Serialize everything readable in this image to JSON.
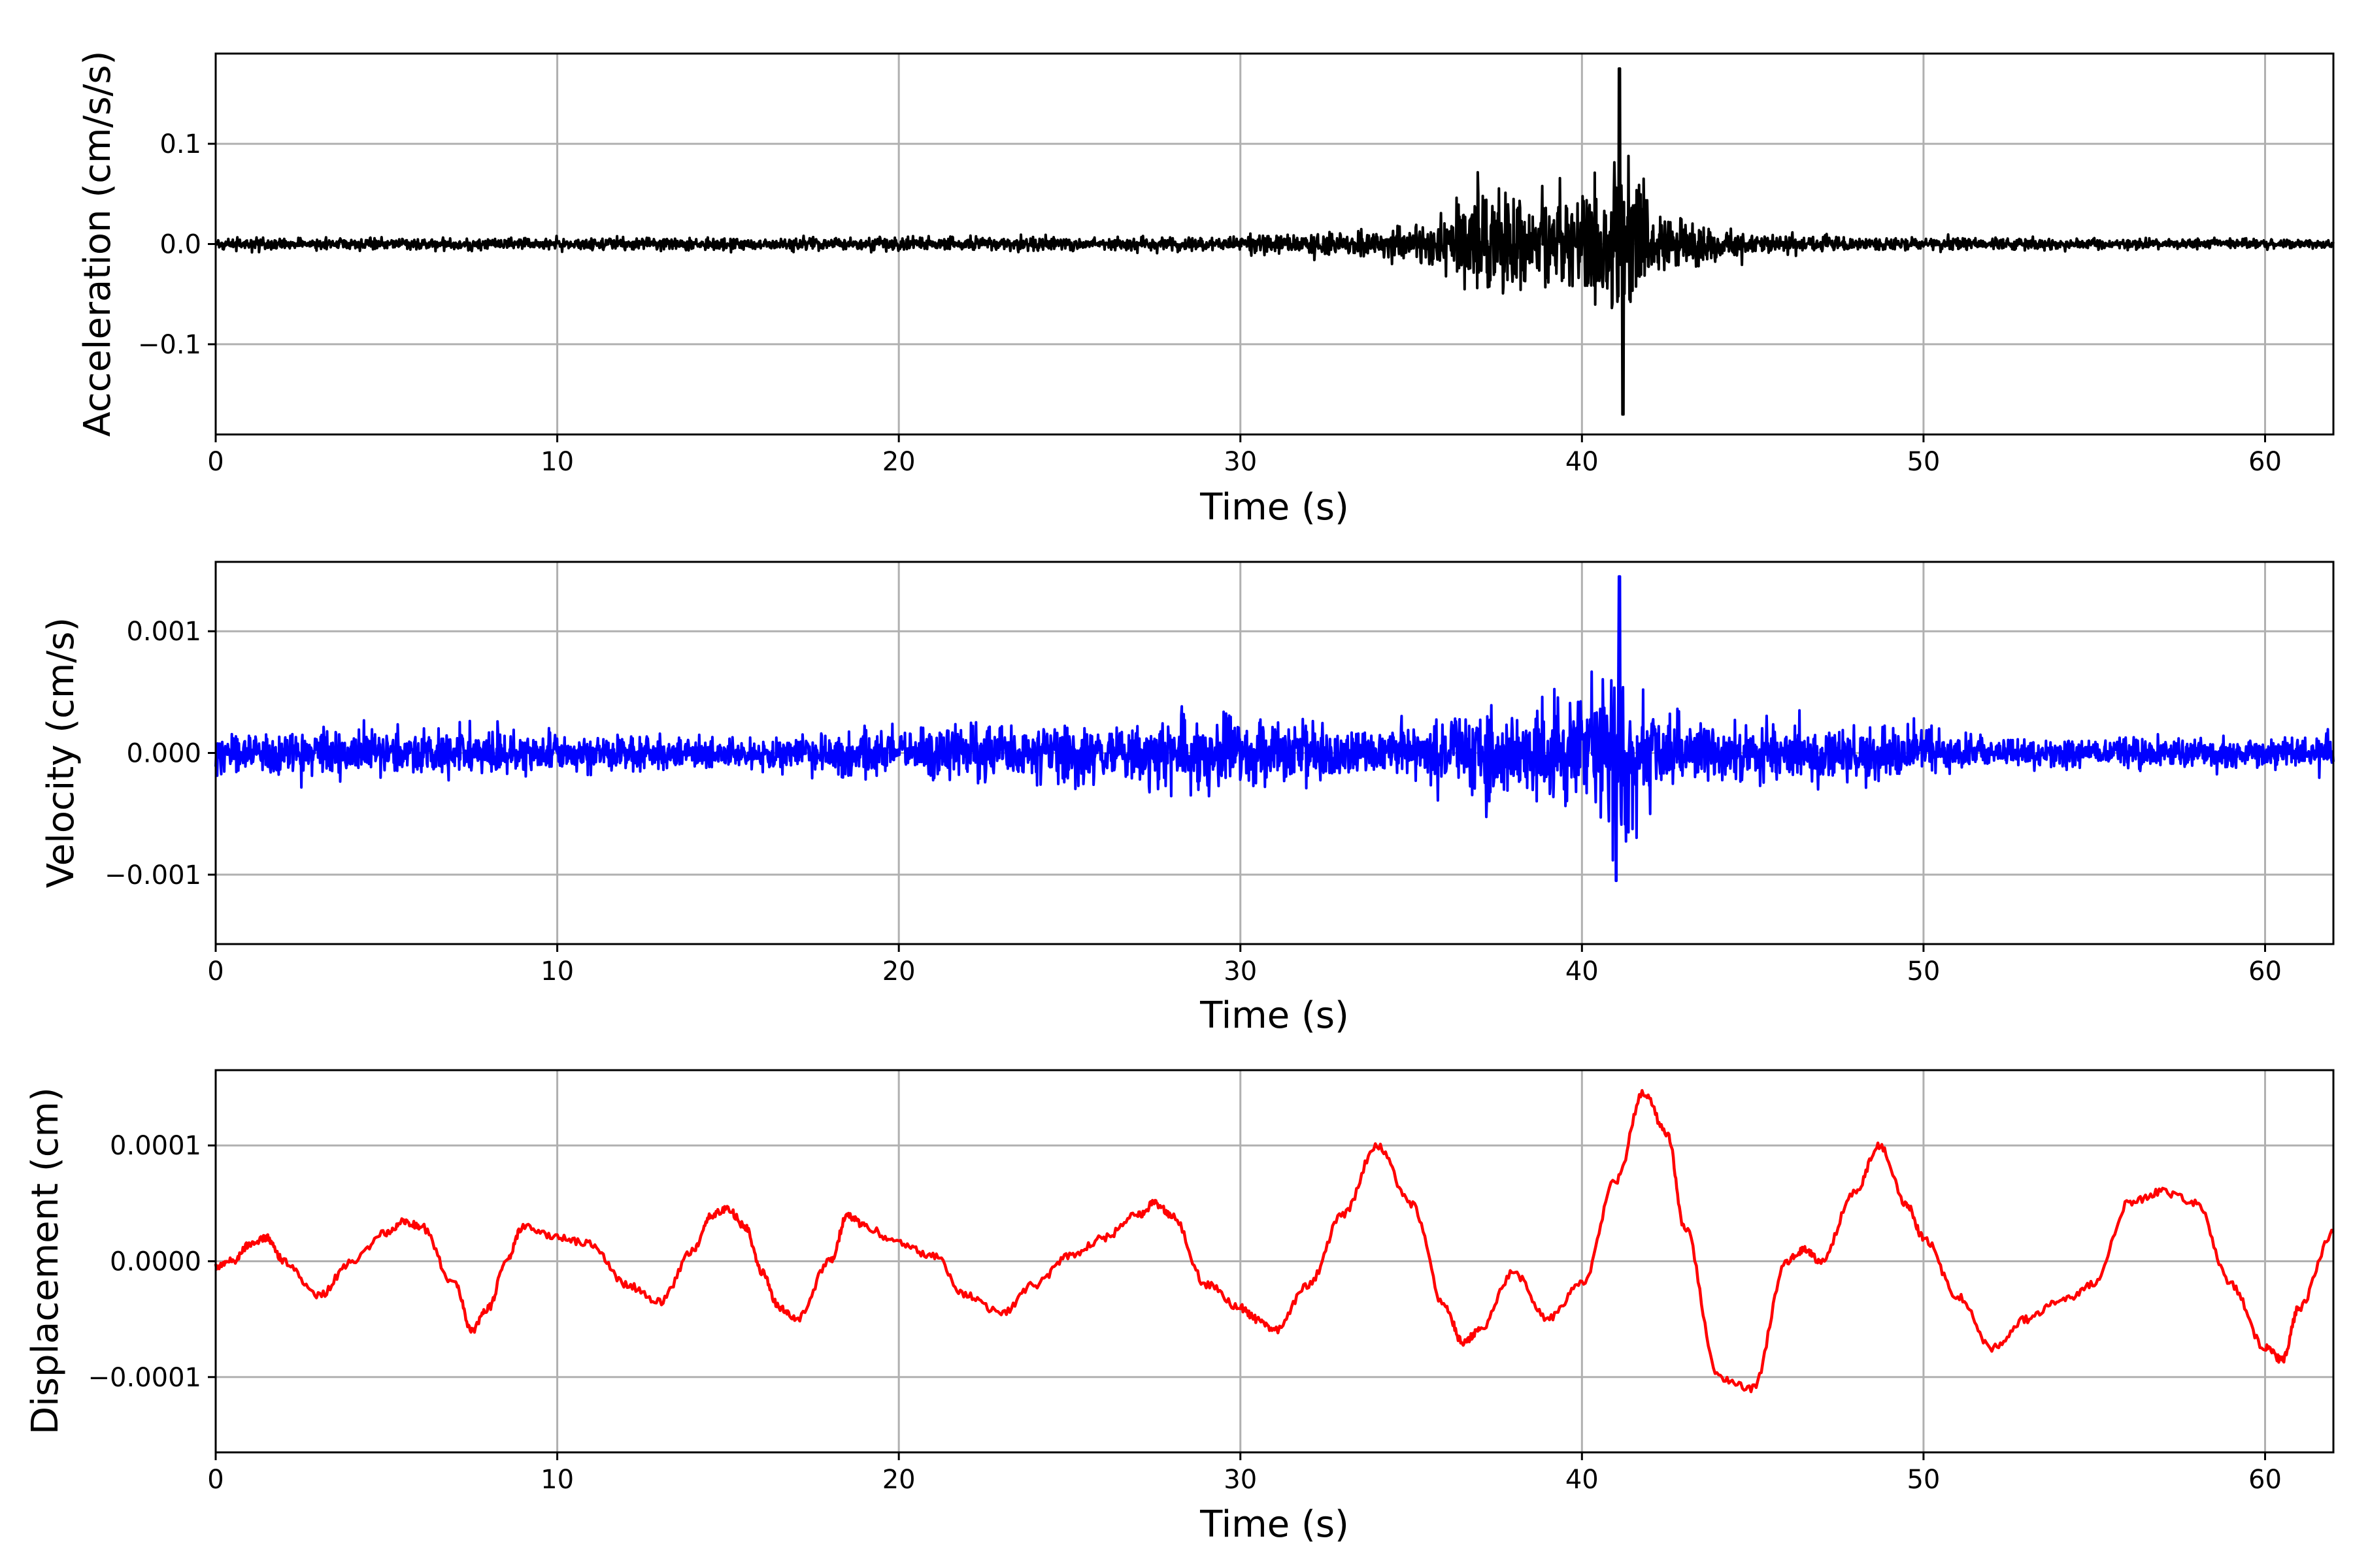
{
  "chart_data": [
    {
      "type": "line",
      "xlabel": "Time (s)",
      "ylabel": "Acceleration (cm/s/s)",
      "xlim": [
        0,
        62
      ],
      "ylim": [
        -0.19,
        0.19
      ],
      "xticks": [
        0,
        10,
        20,
        30,
        40,
        50,
        60
      ],
      "xtick_labels": [
        "0",
        "10",
        "20",
        "30",
        "40",
        "50",
        "60"
      ],
      "yticks": [
        -0.1,
        0.0,
        0.1
      ],
      "ytick_labels": [
        "−0.1",
        "0.0",
        "0.1"
      ],
      "grid": true,
      "color": "#000000",
      "signal": {
        "kind": "burst-noise",
        "baseline_amplitude": 0.008,
        "envelope": [
          [
            0,
            0.01
          ],
          [
            30,
            0.012
          ],
          [
            35,
            0.03
          ],
          [
            37.5,
            0.1
          ],
          [
            39,
            0.07
          ],
          [
            40,
            0.1
          ],
          [
            41.1,
            0.175
          ],
          [
            42.2,
            0.05
          ],
          [
            45,
            0.02
          ],
          [
            48,
            0.012
          ],
          [
            62,
            0.008
          ]
        ],
        "peak": {
          "x": 41.1,
          "y": 0.175
        },
        "trough": {
          "x": 41.2,
          "y": -0.17
        }
      }
    },
    {
      "type": "line",
      "xlabel": "Time (s)",
      "ylabel": "Velocity (cm/s)",
      "xlim": [
        0,
        62
      ],
      "ylim": [
        -0.00157,
        0.00157
      ],
      "xticks": [
        0,
        10,
        20,
        30,
        40,
        50,
        60
      ],
      "xtick_labels": [
        "0",
        "10",
        "20",
        "30",
        "40",
        "50",
        "60"
      ],
      "yticks": [
        -0.001,
        0.0,
        0.001
      ],
      "ytick_labels": [
        "−0.001",
        "0.000",
        "0.001"
      ],
      "grid": true,
      "color": "#0000ff",
      "signal": {
        "kind": "burst-noise",
        "baseline_amplitude": 0.00022,
        "envelope": [
          [
            0,
            0.0003
          ],
          [
            7,
            0.00035
          ],
          [
            15,
            0.0002
          ],
          [
            24,
            0.00045
          ],
          [
            30,
            0.00055
          ],
          [
            34,
            0.0003
          ],
          [
            37,
            0.0006
          ],
          [
            38,
            0.0007
          ],
          [
            40,
            0.0009
          ],
          [
            41.1,
            0.00145
          ],
          [
            42.5,
            0.0005
          ],
          [
            45,
            0.00035
          ],
          [
            48.5,
            0.0005
          ],
          [
            52,
            0.0002
          ],
          [
            62,
            0.00025
          ]
        ],
        "peak": {
          "x": 41.1,
          "y": 0.00145
        },
        "trough": {
          "x": 41.0,
          "y": -0.00105
        }
      }
    },
    {
      "type": "line",
      "xlabel": "Time (s)",
      "ylabel": "Displacement (cm)",
      "xlim": [
        0,
        62
      ],
      "ylim": [
        -0.000165,
        0.000165
      ],
      "xticks": [
        0,
        10,
        20,
        30,
        40,
        50,
        60
      ],
      "xtick_labels": [
        "0",
        "10",
        "20",
        "30",
        "40",
        "50",
        "60"
      ],
      "yticks": [
        -0.0001,
        0.0,
        0.0001
      ],
      "ytick_labels": [
        "−0.0001",
        "0.0000",
        "0.0001"
      ],
      "grid": true,
      "color": "#ff0000",
      "x": [
        0,
        0.5,
        1,
        1.5,
        2,
        3,
        4,
        5,
        5.5,
        6,
        7,
        7.5,
        8,
        8.5,
        9,
        10,
        11,
        12,
        13,
        14,
        14.5,
        15,
        15.5,
        16,
        16.5,
        17,
        18,
        18.5,
        19,
        20,
        21,
        22,
        23,
        24,
        25,
        26,
        27,
        27.5,
        28,
        29,
        30,
        30.5,
        31,
        32,
        33,
        34,
        35,
        36,
        36.5,
        37,
        38,
        39,
        40,
        41,
        41.8,
        42.5,
        43,
        44,
        45,
        46,
        46.5,
        47,
        48,
        48.7,
        49.5,
        50,
        51,
        52,
        53,
        54,
        55,
        56,
        57,
        58,
        59,
        60,
        60.5,
        61,
        62
      ],
      "y": [
        -5e-06,
        0.0,
        1.5e-05,
        2e-05,
        0.0,
        -3e-05,
        0.0,
        2.5e-05,
        3.5e-05,
        3e-05,
        -2e-05,
        -6e-05,
        -4e-05,
        0.0,
        3e-05,
        2e-05,
        1.5e-05,
        -2e-05,
        -3.5e-05,
        1e-05,
        4e-05,
        4.5e-05,
        3e-05,
        -1e-05,
        -4e-05,
        -5e-05,
        0.0,
        4e-05,
        3e-05,
        1.5e-05,
        5e-06,
        -3e-05,
        -4.5e-05,
        -2e-05,
        5e-06,
        2e-05,
        4e-05,
        5e-05,
        4e-05,
        -2e-05,
        -4e-05,
        -5e-05,
        -6e-05,
        -2e-05,
        4e-05,
        0.0001,
        5e-05,
        -4e-05,
        -7e-05,
        -6e-05,
        -1e-05,
        -5e-05,
        -2e-05,
        7e-05,
        0.000145,
        0.00011,
        3e-05,
        -0.0001,
        -0.00011,
        0.0,
        1e-05,
        0.0,
        6e-05,
        0.0001,
        5e-05,
        2e-05,
        -3e-05,
        -7.5e-05,
        -5e-05,
        -3.5e-05,
        -2e-05,
        5e-05,
        6e-05,
        5e-05,
        -2e-05,
        -7.5e-05,
        -8.5e-05,
        -4e-05,
        2.5e-05
      ]
    }
  ]
}
